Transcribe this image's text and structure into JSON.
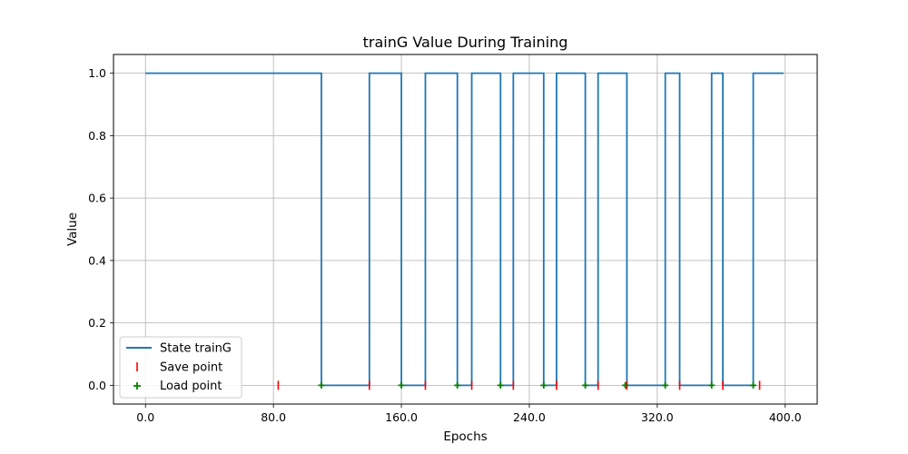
{
  "chart_data": {
    "type": "line",
    "title": "trainG Value During Training",
    "xlabel": "Epochs",
    "ylabel": "Value",
    "xlim": [
      -20,
      420
    ],
    "ylim": [
      -0.06,
      1.06
    ],
    "xticks": [
      0,
      80,
      160,
      240,
      320,
      400
    ],
    "xtick_labels": [
      "0.0",
      "80.0",
      "160.0",
      "240.0",
      "320.0",
      "400.0"
    ],
    "yticks": [
      0.0,
      0.2,
      0.4,
      0.6,
      0.8,
      1.0
    ],
    "ytick_labels": [
      "0.0",
      "0.2",
      "0.4",
      "0.6",
      "0.8",
      "1.0"
    ],
    "grid": true,
    "legend_position": "lower-left",
    "colors": {
      "line": "#1f77b4",
      "save": "#ff0000",
      "load": "#008000"
    },
    "series": [
      {
        "name": "State trainG",
        "x": [
          0,
          110,
          110,
          140,
          140,
          160,
          160,
          175,
          175,
          195,
          195,
          204,
          204,
          222,
          222,
          230,
          230,
          249,
          249,
          257,
          257,
          275,
          275,
          283,
          283,
          301,
          301,
          325,
          325,
          334,
          334,
          354,
          354,
          361,
          361,
          380,
          380,
          384,
          384,
          399
        ],
        "y": [
          1,
          1,
          0,
          0,
          1,
          1,
          0,
          0,
          1,
          1,
          0,
          0,
          1,
          1,
          0,
          0,
          1,
          1,
          0,
          0,
          1,
          1,
          0,
          0,
          1,
          1,
          0,
          0,
          1,
          1,
          0,
          0,
          1,
          1,
          0,
          0,
          1,
          1,
          1,
          1
        ]
      }
    ],
    "markers": [
      {
        "name": "Save point",
        "x": [
          83,
          140,
          175,
          204,
          230,
          257,
          283,
          301,
          334,
          361,
          384
        ],
        "y": [
          0,
          0,
          0,
          0,
          0,
          0,
          0,
          0,
          0,
          0,
          0
        ]
      },
      {
        "name": "Load point",
        "x": [
          110,
          160,
          195,
          222,
          249,
          275,
          300,
          325,
          354,
          380
        ],
        "y": [
          0,
          0,
          0,
          0,
          0,
          0,
          0,
          0,
          0,
          0
        ]
      }
    ]
  }
}
